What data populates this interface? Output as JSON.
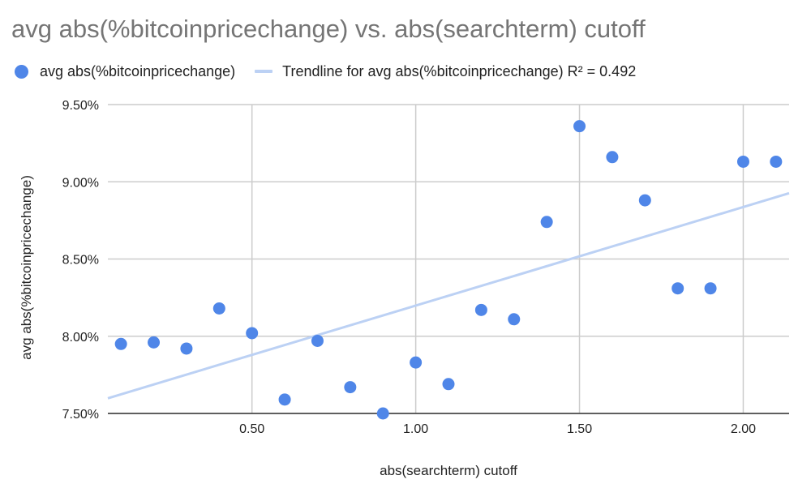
{
  "title": "avg abs(%bitcoinpricechange) vs. abs(searchterm) cutoff",
  "legend": {
    "series_label": "avg abs(%bitcoinpricechange)",
    "trend_label": "Trendline for avg abs(%bitcoinpricechange) R² = 0.492"
  },
  "colors": {
    "points": "#4f86e8",
    "trendline": "#bcd1f4",
    "grid": "#cccccc"
  },
  "chart_data": {
    "type": "scatter",
    "title": "avg abs(%bitcoinpricechange) vs. abs(searchterm) cutoff",
    "xlabel": "abs(searchterm) cutoff",
    "ylabel": "avg abs(%bitcoinpricechange)",
    "xlim": [
      0.06,
      2.14
    ],
    "ylim": [
      7.5,
      9.5
    ],
    "x_ticks": [
      0.5,
      1.0,
      1.5,
      2.0
    ],
    "x_tick_labels": [
      "0.50",
      "1.00",
      "1.50",
      "2.00"
    ],
    "y_ticks": [
      7.5,
      8.0,
      8.5,
      9.0,
      9.5
    ],
    "y_tick_labels": [
      "7.50%",
      "8.00%",
      "8.50%",
      "9.00%",
      "9.50%"
    ],
    "grid": true,
    "legend_position": "top-left",
    "series": [
      {
        "name": "avg abs(%bitcoinpricechange)",
        "x": [
          0.1,
          0.2,
          0.3,
          0.4,
          0.5,
          0.6,
          0.7,
          0.8,
          0.9,
          1.0,
          1.1,
          1.2,
          1.3,
          1.4,
          1.5,
          1.6,
          1.7,
          1.8,
          1.9,
          2.0,
          2.1
        ],
        "y": [
          7.95,
          7.96,
          7.92,
          8.18,
          8.02,
          7.59,
          7.97,
          7.67,
          7.5,
          7.83,
          7.69,
          8.17,
          8.11,
          8.74,
          9.36,
          9.16,
          8.88,
          8.31,
          8.31,
          9.13,
          9.13
        ]
      }
    ],
    "trendline": {
      "name": "Trendline for avg abs(%bitcoinpricechange)",
      "r_squared": 0.492,
      "slope": 0.6383,
      "intercept": 7.56
    }
  }
}
